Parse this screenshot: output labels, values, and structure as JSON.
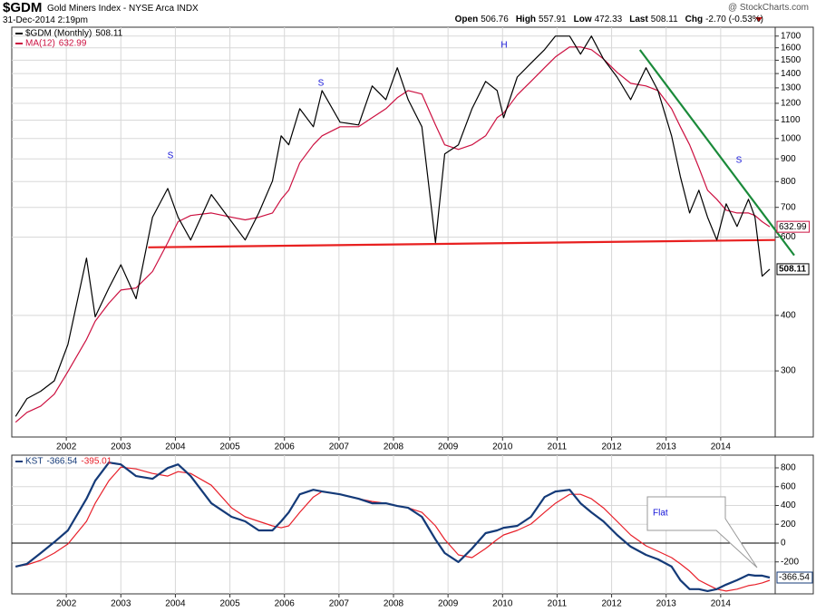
{
  "header": {
    "symbol": "$GDM",
    "name": "Gold Miners Index - NYSE Arca INDX",
    "date": "31-Dec-2014 2:19pm",
    "source": "@ StockCharts.com",
    "quote": [
      {
        "label": "Open",
        "text": "506.76"
      },
      {
        "label": "High",
        "text": "557.91"
      },
      {
        "label": "Low",
        "text": "472.33"
      },
      {
        "label": "Last",
        "text": "508.11"
      },
      {
        "label": "Chg",
        "text": "-2.70 (-0.53%)"
      }
    ]
  },
  "chart_data": [
    {
      "type": "line",
      "log_scale": true,
      "grid": true,
      "x": [
        2001.07,
        2001.28,
        2001.53,
        2001.78,
        2002.03,
        2002.37,
        2002.53,
        2002.78,
        2003.0,
        2003.28,
        2003.58,
        2003.86,
        2004.05,
        2004.28,
        2004.66,
        2005.03,
        2005.28,
        2005.53,
        2005.78,
        2005.94,
        2006.08,
        2006.28,
        2006.53,
        2006.69,
        2007.02,
        2007.36,
        2007.61,
        2007.86,
        2008.07,
        2008.27,
        2008.52,
        2008.77,
        2008.94,
        2009.19,
        2009.44,
        2009.69,
        2009.9,
        2010.02,
        2010.27,
        2010.52,
        2010.77,
        2010.97,
        2011.23,
        2011.43,
        2011.63,
        2011.85,
        2012.1,
        2012.35,
        2012.63,
        2012.85,
        2013.1,
        2013.26,
        2013.43,
        2013.6,
        2013.76,
        2013.93,
        2014.1,
        2014.3,
        2014.51,
        2014.63,
        2014.76,
        2014.9
      ],
      "xlim": [
        2001,
        2015
      ],
      "xticks": [
        2002,
        2003,
        2004,
        2005,
        2006,
        2007,
        2008,
        2009,
        2010,
        2011,
        2012,
        2013,
        2014
      ],
      "ylim": [
        213,
        1780
      ],
      "yticks": [
        300,
        400,
        600,
        700,
        800,
        900,
        1000,
        1100,
        1200,
        1300,
        1400,
        1500,
        1600,
        1700
      ],
      "series": [
        {
          "name": "$GDM (Monthly)",
          "color": "#000000",
          "end_label": true,
          "values": [
            237,
            260,
            270,
            285,
            344,
            538,
            397,
            461,
            520,
            436,
            665,
            772,
            665,
            591,
            748,
            650,
            591,
            680,
            802,
            1014,
            968,
            1167,
            1063,
            1282,
            1088,
            1073,
            1313,
            1223,
            1443,
            1223,
            1063,
            583,
            923,
            968,
            1167,
            1344,
            1282,
            1114,
            1375,
            1477,
            1584,
            1700,
            1700,
            1548,
            1700,
            1511,
            1375,
            1223,
            1443,
            1282,
            1014,
            821,
            680,
            765,
            665,
            591,
            713,
            634,
            730,
            665,
            490,
            508.11
          ]
        },
        {
          "name": "MA(12)",
          "color": "#cc1040",
          "end_label": true,
          "values": [
            230,
            242,
            250,
            266,
            299,
            353,
            388,
            426,
            456,
            461,
            502,
            583,
            650,
            671,
            680,
            665,
            656,
            665,
            680,
            730,
            765,
            881,
            968,
            1014,
            1063,
            1063,
            1114,
            1167,
            1235,
            1282,
            1259,
            1073,
            968,
            945,
            968,
            1014,
            1114,
            1141,
            1253,
            1344,
            1443,
            1526,
            1607,
            1607,
            1584,
            1511,
            1409,
            1331,
            1313,
            1282,
            1167,
            1063,
            968,
            860,
            765,
            730,
            690,
            680,
            680,
            671,
            650,
            632.99
          ]
        }
      ],
      "trendlines": [
        {
          "color": "#e82020",
          "x": [
            2003.5,
            2015
          ],
          "y": [
            569,
            591
          ]
        },
        {
          "color": "#1a8a3a",
          "x": [
            2012.52,
            2015.35
          ],
          "y": [
            1583,
            546
          ]
        }
      ],
      "annotations": [
        "S",
        "S",
        "H",
        "S"
      ],
      "annotation_color": "#1414d8"
    },
    {
      "type": "line",
      "grid": true,
      "x": [
        2001.07,
        2001.28,
        2001.53,
        2001.78,
        2002.03,
        2002.37,
        2002.53,
        2002.78,
        2003.0,
        2003.28,
        2003.58,
        2003.86,
        2004.05,
        2004.28,
        2004.66,
        2005.03,
        2005.28,
        2005.53,
        2005.78,
        2005.94,
        2006.08,
        2006.28,
        2006.53,
        2006.69,
        2007.02,
        2007.36,
        2007.61,
        2007.86,
        2008.07,
        2008.27,
        2008.52,
        2008.77,
        2008.94,
        2009.19,
        2009.44,
        2009.69,
        2009.9,
        2010.02,
        2010.27,
        2010.52,
        2010.77,
        2010.97,
        2011.23,
        2011.43,
        2011.63,
        2011.85,
        2012.1,
        2012.35,
        2012.63,
        2012.85,
        2013.1,
        2013.26,
        2013.43,
        2013.6,
        2013.76,
        2013.93,
        2014.1,
        2014.3,
        2014.51,
        2014.63,
        2014.76,
        2014.9
      ],
      "xlim": [
        2001,
        2015
      ],
      "xticks": [
        2002,
        2003,
        2004,
        2005,
        2006,
        2007,
        2008,
        2009,
        2010,
        2011,
        2012,
        2013,
        2014
      ],
      "ylim": [
        -540,
        935
      ],
      "yticks": [
        -200,
        0,
        200,
        400,
        600,
        800
      ],
      "series": [
        {
          "name": "KST",
          "color": "#143a78",
          "end_label": true,
          "values": [
            -250,
            -221,
            -106,
            10,
            135,
            471,
            663,
            856,
            837,
            712,
            683,
            798,
            837,
            712,
            423,
            279,
            231,
            135,
            135,
            231,
            327,
            519,
            567,
            548,
            519,
            471,
            423,
            423,
            394,
            375,
            279,
            38,
            -106,
            -202,
            -58,
            106,
            135,
            163,
            183,
            279,
            490,
            548,
            567,
            423,
            327,
            231,
            87,
            -38,
            -125,
            -173,
            -250,
            -394,
            -490,
            -490,
            -510,
            -490,
            -442,
            -394,
            -337,
            -346,
            -346,
            -366.54
          ]
        },
        {
          "color": "#e8202a",
          "values": [
            -250,
            -231,
            -183,
            -106,
            -10,
            231,
            423,
            663,
            808,
            788,
            740,
            712,
            760,
            740,
            615,
            375,
            279,
            231,
            183,
            163,
            183,
            327,
            490,
            548,
            519,
            471,
            442,
            423,
            394,
            375,
            327,
            183,
            38,
            -125,
            -154,
            -58,
            38,
            87,
            135,
            202,
            327,
            423,
            519,
            519,
            471,
            375,
            231,
            87,
            -29,
            -87,
            -154,
            -221,
            -298,
            -394,
            -442,
            -490,
            -510,
            -490,
            -452,
            -442,
            -423,
            -395.01
          ]
        }
      ],
      "annotations": [
        "Flat"
      ],
      "annotation_color": "#1414d8"
    }
  ]
}
